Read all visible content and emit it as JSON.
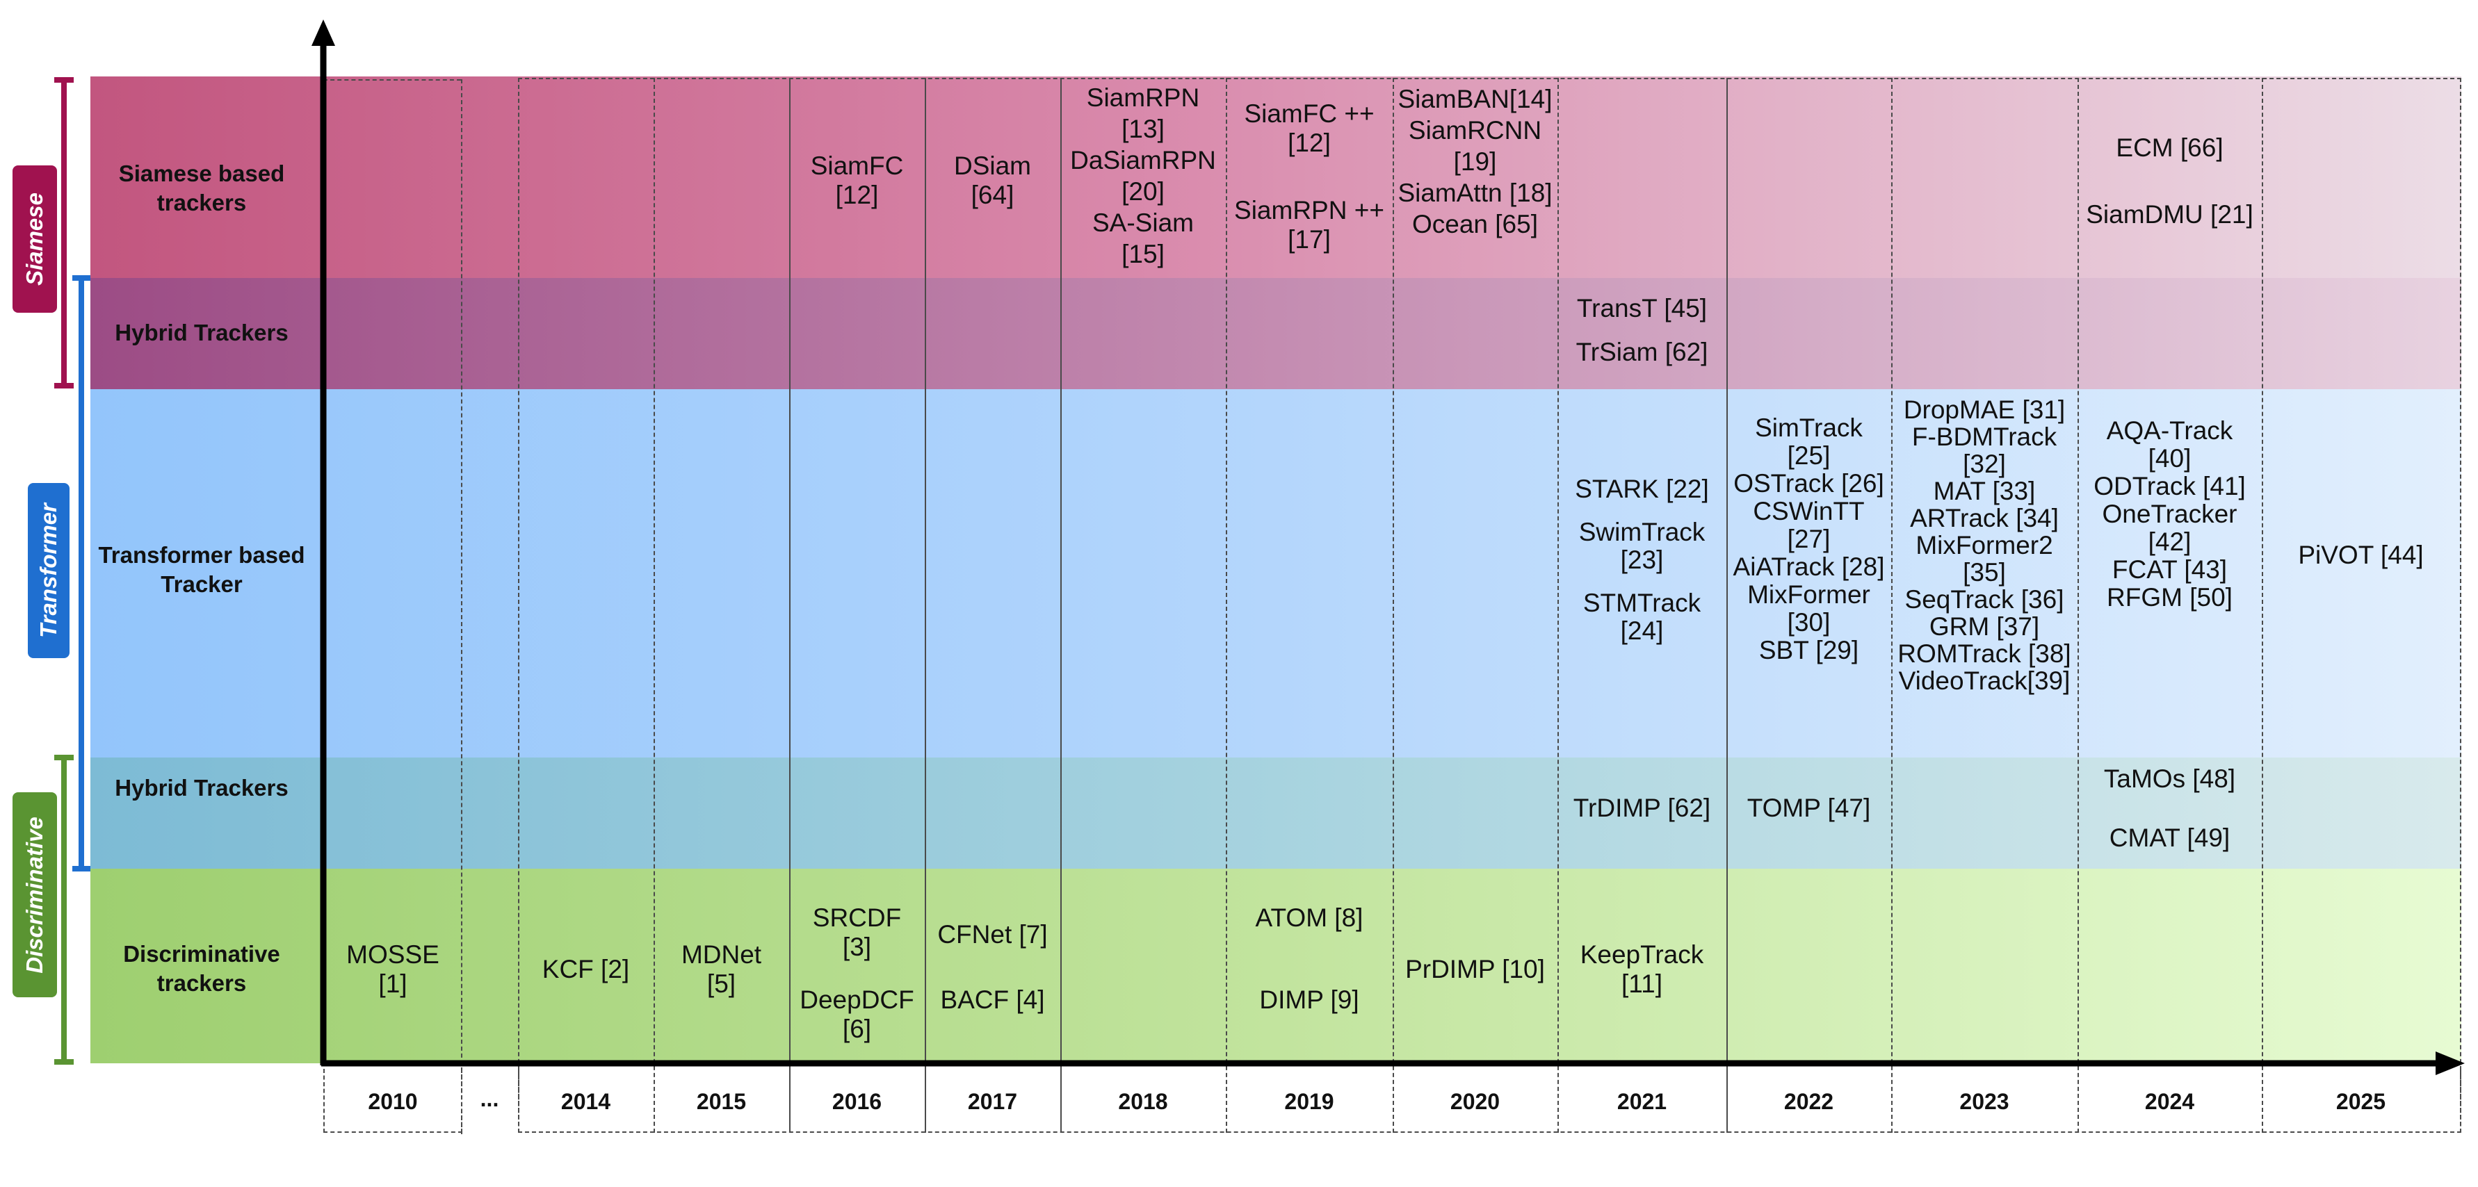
{
  "categories": [
    {
      "label": "Siamese",
      "color": "#a0124f"
    },
    {
      "label": "Transformer",
      "color": "#1f6fd0"
    },
    {
      "label": "Discriminative",
      "color": "#5a9432"
    }
  ],
  "rows": [
    {
      "label": "Siamese based trackers"
    },
    {
      "label": "Hybrid Trackers"
    },
    {
      "label": "Transformer based Tracker"
    },
    {
      "label": "Hybrid Trackers"
    },
    {
      "label": "Discriminative trackers"
    }
  ],
  "years": [
    "2010",
    "...",
    "2014",
    "2015",
    "2016",
    "2017",
    "2018",
    "2019",
    "2020",
    "2021",
    "2022",
    "2023",
    "2024",
    "2025"
  ],
  "trackers": {
    "siamese_2016": [
      "SiamFC",
      "[12]"
    ],
    "siamese_2017": [
      "DSiam",
      "[64]"
    ],
    "siamese_2018": [
      "SiamRPN",
      "[13]",
      "DaSiamRPN",
      "[20]",
      "SA-Siam",
      "[15]"
    ],
    "siamese_2019a": [
      "SiamFC ++",
      "[12]"
    ],
    "siamese_2019b": [
      "SiamRPN ++",
      "[17]"
    ],
    "siamese_2020": [
      "SiamBAN[14]",
      "SiamRCNN",
      "[19]",
      "SiamAttn [18]",
      "Ocean [65]"
    ],
    "siamese_2024a": [
      "ECM [66]"
    ],
    "siamese_2024b": [
      "SiamDMU [21]"
    ],
    "hybrid_s_2021a": [
      "TransT [45]"
    ],
    "hybrid_s_2021b": [
      "TrSiam [62]"
    ],
    "transformer_2021": [
      "STARK [22]",
      "",
      "SwimTrack",
      "[23]",
      "",
      "STMTrack",
      "[24]"
    ],
    "transformer_2022": [
      "SimTrack",
      "[25]",
      "OSTrack [26]",
      "CSWinTT",
      "[27]",
      "AiATrack [28]",
      "MixFormer",
      "[30]",
      "SBT [29]"
    ],
    "transformer_2023": [
      "DropMAE [31]",
      "F-BDMTrack",
      "[32]",
      "MAT [33]",
      "ARTrack [34]",
      "MixFormer2",
      "[35]",
      "SeqTrack [36]",
      "GRM [37]",
      "ROMTrack [38]",
      "VideoTrack[39]"
    ],
    "transformer_2024": [
      "AQA-Track",
      "[40]",
      "ODTrack [41]",
      "OneTracker",
      "[42]",
      "FCAT [43]",
      "RFGM [50]"
    ],
    "transformer_2025": [
      "PiVOT [44]"
    ],
    "hybrid_d_2021": [
      "TrDIMP [62]"
    ],
    "hybrid_d_2022": [
      "TOMP [47]"
    ],
    "hybrid_d_2024a": [
      "TaMOs [48]"
    ],
    "hybrid_d_2024b": [
      "CMAT [49]"
    ],
    "disc_2010": [
      "MOSSE",
      "[1]"
    ],
    "disc_2014": [
      "KCF [2]"
    ],
    "disc_2015": [
      "MDNet",
      "[5]"
    ],
    "disc_2016a": [
      "SRCDF",
      "[3]"
    ],
    "disc_2016b": [
      "DeepDCF",
      "[6]"
    ],
    "disc_2017a": [
      "CFNet [7]"
    ],
    "disc_2017b": [
      "BACF [4]"
    ],
    "disc_2019a": [
      "ATOM [8]"
    ],
    "disc_2019b": [
      "DIMP [9]"
    ],
    "disc_2020": [
      "PrDIMP [10]"
    ],
    "disc_2021": [
      "KeepTrack",
      "[11]"
    ]
  }
}
